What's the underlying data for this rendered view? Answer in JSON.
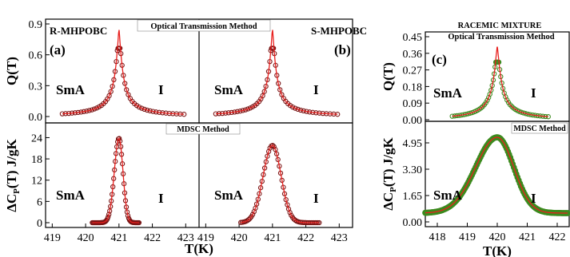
{
  "figure": {
    "xlabel_left": "T(K)",
    "xlabel_right": "T(K)",
    "methods": {
      "optical_left": "Optical Transmission Method",
      "mdsc_left": "MDSC Method",
      "racemic_title": "RACEMIC MIXTURE",
      "optical_right": "Optical Transmission Method",
      "mdsc_right": "MDSC Method"
    },
    "ylabels": {
      "q_left": "Q(T)",
      "cp_left": "ΔC_P(T) J/gK",
      "q_right": "Q(T)",
      "cp_right": "ΔC_P(T) J/gK"
    },
    "colors": {
      "fit": "#e8201e",
      "data_a_b": "#7a1414",
      "data_c": "#3c8a1e"
    }
  },
  "chart_data": [
    {
      "id": "a-top",
      "type": "scatter",
      "panel_label": "(a)",
      "sample": "R-MHPOBC",
      "phase_left": "SmA",
      "phase_right": "I",
      "ylim": [
        0,
        0.9
      ],
      "yticks": [
        "0.0",
        "0.3",
        "0.6",
        "0.9"
      ],
      "xlim": [
        418.8,
        423.4
      ],
      "peak": {
        "tc": 421.0,
        "height": 0.85,
        "width": 0.12,
        "start": 419.3,
        "end": 422.95
      }
    },
    {
      "id": "b-top",
      "type": "scatter",
      "panel_label": "(b)",
      "sample": "S-MHPOBC",
      "phase_left": "SmA",
      "phase_right": "I",
      "ylim": [
        0,
        0.9
      ],
      "xlim": [
        418.8,
        423.4
      ],
      "peak": {
        "tc": 421.0,
        "height": 0.85,
        "width": 0.12,
        "start": 419.3,
        "end": 422.95
      }
    },
    {
      "id": "a-bottom",
      "type": "scatter",
      "sample": "R-MHPOBC",
      "phase_left": "SmA",
      "phase_right": "I",
      "ylim": [
        0,
        25
      ],
      "yticks": [
        "0",
        "6",
        "12",
        "18",
        "24"
      ],
      "xlim": [
        418.8,
        423.4
      ],
      "xticks": [
        "419",
        "420",
        "421",
        "422",
        "423"
      ],
      "peak": {
        "tc": 421.0,
        "height": 23.8,
        "sig_left": 0.14,
        "sig_right": 0.12,
        "start": 420.2,
        "end": 421.6
      }
    },
    {
      "id": "b-bottom",
      "type": "scatter",
      "sample": "S-MHPOBC",
      "phase_left": "SmA",
      "phase_right": "I",
      "ylim": [
        0,
        25
      ],
      "xlim": [
        418.8,
        423.4
      ],
      "xticks": [
        "419",
        "420",
        "421",
        "422",
        "423"
      ],
      "peak": {
        "tc": 421.0,
        "height": 21.8,
        "sig_left": 0.28,
        "sig_right": 0.26,
        "start": 420.05,
        "end": 422.4
      }
    },
    {
      "id": "c-top",
      "type": "scatter",
      "panel_label": "(c)",
      "phase_left": "SmA",
      "phase_right": "I",
      "ylim": [
        0,
        0.45
      ],
      "yticks": [
        "0.00",
        "0.09",
        "0.18",
        "0.27",
        "0.36",
        "0.45"
      ],
      "xlim": [
        417.6,
        422.4
      ],
      "peak": {
        "tc": 420.0,
        "height": 0.4,
        "width": 0.15,
        "start": 418.5,
        "end": 421.7
      }
    },
    {
      "id": "c-bottom",
      "type": "scatter",
      "phase_left": "SmA",
      "phase_right": "I",
      "ylim": [
        0,
        5.6
      ],
      "yticks": [
        "0.00",
        "1.65",
        "3.30",
        "4.95"
      ],
      "xlim": [
        417.6,
        422.4
      ],
      "xticks": [
        "418",
        "419",
        "420",
        "421",
        "422"
      ],
      "peak": {
        "tc": 420.0,
        "height": 5.3,
        "sig_left": 0.72,
        "sig_right": 0.55,
        "base": 0.55,
        "start": 417.6,
        "end": 422.35
      }
    }
  ]
}
